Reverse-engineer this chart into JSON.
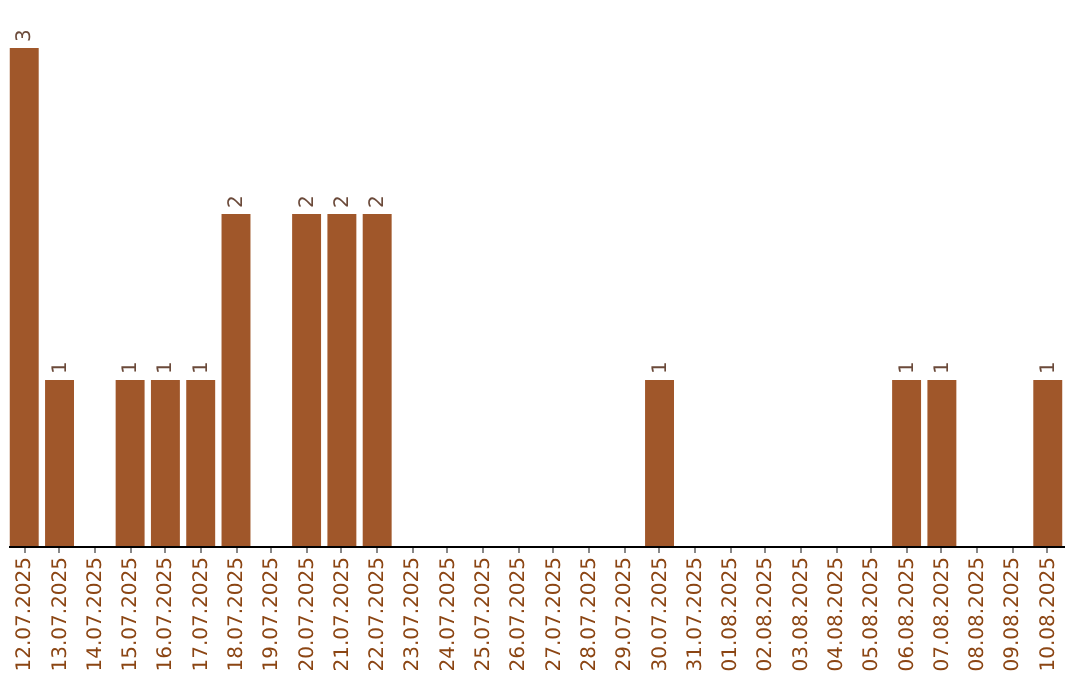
{
  "chart_data": {
    "type": "bar",
    "categories": [
      "12.07.2025",
      "13.07.2025",
      "14.07.2025",
      "15.07.2025",
      "16.07.2025",
      "17.07.2025",
      "18.07.2025",
      "19.07.2025",
      "20.07.2025",
      "21.07.2025",
      "22.07.2025",
      "23.07.2025",
      "24.07.2025",
      "25.07.2025",
      "26.07.2025",
      "27.07.2025",
      "28.07.2025",
      "29.07.2025",
      "30.07.2025",
      "31.07.2025",
      "01.08.2025",
      "02.08.2025",
      "03.08.2025",
      "04.08.2025",
      "05.08.2025",
      "06.08.2025",
      "07.08.2025",
      "08.08.2025",
      "09.08.2025",
      "10.08.2025"
    ],
    "values": [
      3,
      1,
      0,
      1,
      1,
      1,
      2,
      0,
      2,
      2,
      2,
      0,
      0,
      0,
      0,
      0,
      0,
      0,
      1,
      0,
      0,
      0,
      0,
      0,
      0,
      1,
      1,
      0,
      0,
      1
    ],
    "value_labels": [
      "3",
      "1",
      null,
      "1",
      "1",
      "1",
      "2",
      null,
      "2",
      "2",
      "2",
      null,
      null,
      null,
      null,
      null,
      null,
      null,
      "1",
      null,
      null,
      null,
      null,
      null,
      null,
      "1",
      "1",
      null,
      null,
      "1"
    ],
    "color": "#a0572a",
    "grid": false
  }
}
